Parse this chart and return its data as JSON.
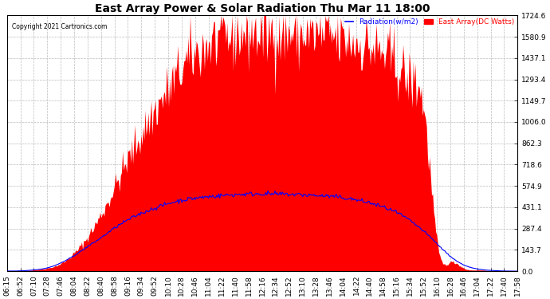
{
  "title": "East Array Power & Solar Radiation Thu Mar 11 18:00",
  "copyright": "Copyright 2021 Cartronics.com",
  "legend_radiation": "Radiation(w/m2)",
  "legend_east_array": "East Array(DC Watts)",
  "legend_radiation_color": "blue",
  "legend_east_array_color": "red",
  "ymax": 1724.6,
  "ymin": 0.0,
  "yticks": [
    0.0,
    143.7,
    287.4,
    431.1,
    574.9,
    718.6,
    862.3,
    1006.0,
    1149.7,
    1293.4,
    1437.1,
    1580.9,
    1724.6
  ],
  "background_color": "#ffffff",
  "plot_bg_color": "#ffffff",
  "grid_color": "#bbbbbb",
  "fill_color": "red",
  "line_color": "blue",
  "title_fontsize": 10,
  "tick_fontsize": 6.5,
  "xtick_labels": [
    "06:15",
    "06:52",
    "07:10",
    "07:28",
    "07:46",
    "08:04",
    "08:22",
    "08:40",
    "08:58",
    "09:16",
    "09:34",
    "09:52",
    "10:10",
    "10:28",
    "10:46",
    "11:04",
    "11:22",
    "11:40",
    "11:58",
    "12:16",
    "12:34",
    "12:52",
    "13:10",
    "13:28",
    "13:46",
    "14:04",
    "14:22",
    "14:40",
    "14:58",
    "15:16",
    "15:34",
    "15:52",
    "16:10",
    "16:28",
    "16:46",
    "17:04",
    "17:22",
    "17:40",
    "17:58"
  ],
  "east_array": [
    2,
    4,
    8,
    20,
    50,
    120,
    230,
    380,
    560,
    750,
    920,
    1080,
    1220,
    1360,
    1460,
    1530,
    1570,
    1590,
    1600,
    1605,
    1610,
    1600,
    1595,
    1590,
    1580,
    1560,
    1540,
    1510,
    1460,
    1390,
    1280,
    1100,
    200,
    60,
    20,
    8,
    3,
    1,
    0
  ],
  "radiation": [
    1,
    2,
    8,
    22,
    55,
    105,
    165,
    225,
    290,
    345,
    390,
    425,
    455,
    478,
    492,
    502,
    510,
    516,
    520,
    522,
    520,
    518,
    515,
    510,
    505,
    495,
    480,
    460,
    432,
    395,
    340,
    270,
    185,
    100,
    42,
    15,
    5,
    1,
    0
  ]
}
